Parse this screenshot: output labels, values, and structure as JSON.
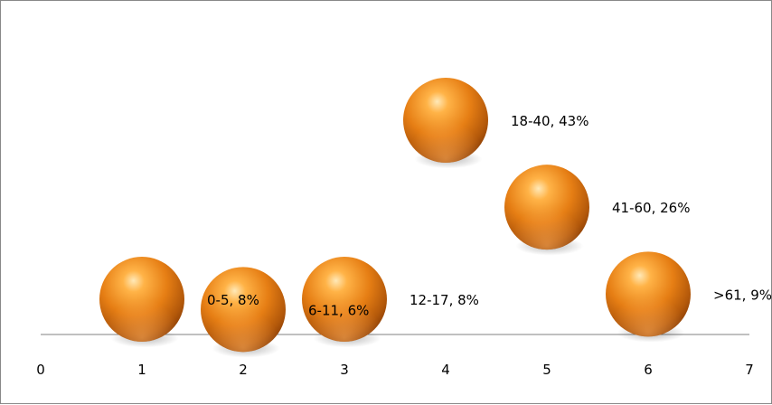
{
  "chart_data": {
    "type": "bubble",
    "xlim": [
      0,
      7
    ],
    "x_ticks": [
      "0",
      "1",
      "2",
      "3",
      "4",
      "5",
      "6",
      "7"
    ],
    "grid": false,
    "legend": "none",
    "points": [
      {
        "x": 1,
        "y": 8,
        "label": "0-5, 8%"
      },
      {
        "x": 2,
        "y": 6,
        "label": "6-11, 6%"
      },
      {
        "x": 3,
        "y": 8,
        "label": "12-17, 8%"
      },
      {
        "x": 4,
        "y": 43,
        "label": "18-40, 43%"
      },
      {
        "x": 5,
        "y": 26,
        "label": "41-60, 26%"
      },
      {
        "x": 6,
        "y": 9,
        "label": ">61, 9%"
      }
    ],
    "bubble_color": "#e07b12"
  }
}
